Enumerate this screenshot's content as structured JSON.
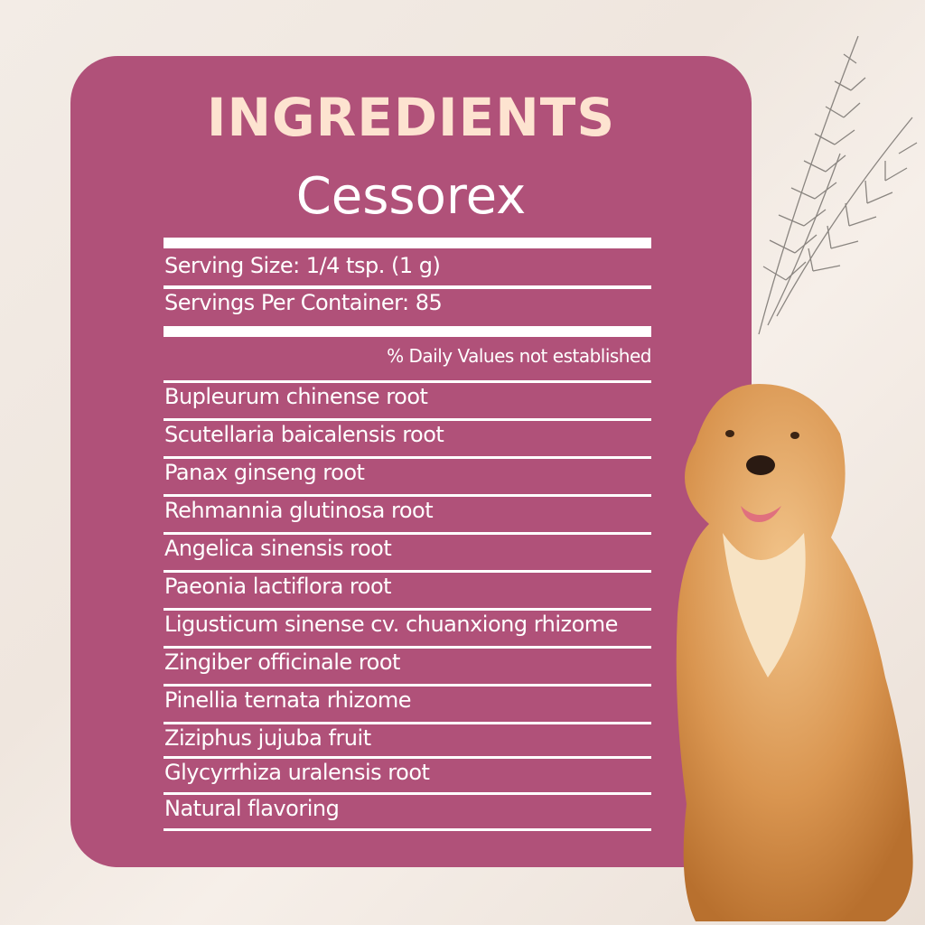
{
  "title": "INGREDIENTS",
  "product": "Cessorex",
  "serving_size": "Serving Size: 1/4 tsp. (1 g)",
  "servings_per_container": "Servings Per Container: 85",
  "daily_values_note": "% Daily Values not established",
  "ingredients": [
    "Bupleurum chinense root",
    "Scutellaria baicalensis root",
    "Panax ginseng root",
    "Rehmannia glutinosa root",
    "Angelica sinensis root",
    "Paeonia lactiflora root",
    "Ligusticum sinense cv. chuanxiong rhizome",
    "Zingiber officinale root",
    "Pinellia ternata rhizome",
    "Ziziphus jujuba fruit",
    "Glycyrrhiza uralensis root",
    "Natural flavoring"
  ],
  "colors": {
    "card": "#b05179",
    "title": "#fde3d0",
    "text": "#ffffff"
  }
}
